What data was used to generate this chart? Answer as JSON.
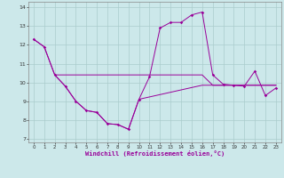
{
  "xlabel": "Windchill (Refroidissement éolien,°C)",
  "background_color": "#cce8ea",
  "line_color": "#990099",
  "grid_color": "#aacccc",
  "x_ticks": [
    0,
    1,
    2,
    3,
    4,
    5,
    6,
    7,
    8,
    9,
    10,
    11,
    12,
    13,
    14,
    15,
    16,
    17,
    18,
    19,
    20,
    21,
    22,
    23
  ],
  "y_ticks": [
    7,
    8,
    9,
    10,
    11,
    12,
    13,
    14
  ],
  "ylim": [
    6.8,
    14.3
  ],
  "xlim": [
    -0.5,
    23.5
  ],
  "series1": {
    "x": [
      0,
      1,
      2,
      3,
      4,
      5,
      6,
      7,
      8,
      9,
      10,
      11,
      12,
      13,
      14,
      15,
      16,
      17,
      18,
      19,
      20,
      21,
      22,
      23
    ],
    "y": [
      12.3,
      11.9,
      10.4,
      9.8,
      9.0,
      8.5,
      8.4,
      7.8,
      7.75,
      7.5,
      9.1,
      10.3,
      12.9,
      13.2,
      13.2,
      13.6,
      13.75,
      10.4,
      9.9,
      9.85,
      9.8,
      10.6,
      9.3,
      9.7
    ]
  },
  "series2": {
    "x": [
      0,
      1,
      2,
      16,
      17,
      23
    ],
    "y": [
      12.3,
      11.9,
      10.4,
      10.4,
      9.85,
      9.85
    ]
  },
  "series3": {
    "x": [
      2,
      3,
      4,
      5,
      6,
      7,
      8,
      9,
      10,
      16,
      17,
      23
    ],
    "y": [
      10.4,
      9.8,
      9.0,
      8.5,
      8.4,
      7.8,
      7.75,
      7.5,
      9.1,
      9.85,
      9.85,
      9.85
    ]
  }
}
